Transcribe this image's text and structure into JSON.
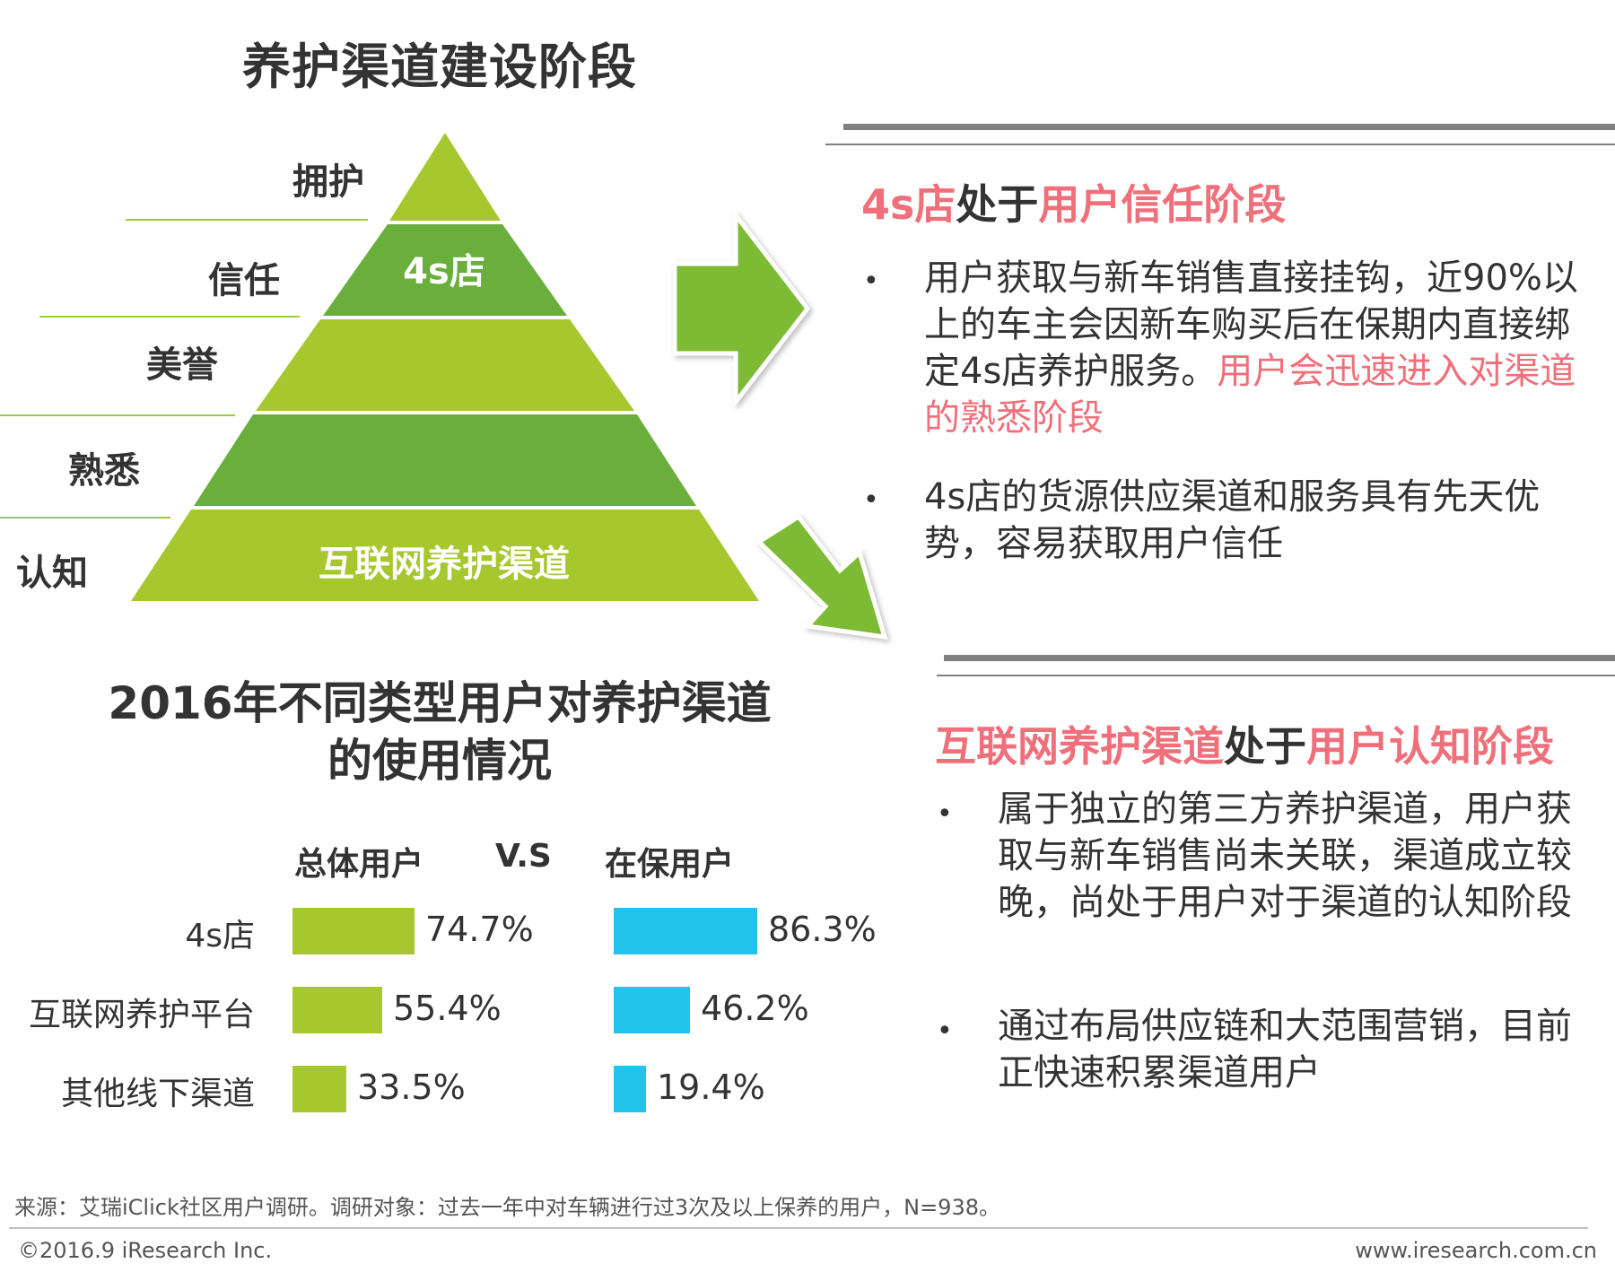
{
  "pyramid": {
    "title": "养护渠道建设阶段",
    "stages": [
      "拥护",
      "信任",
      "美誉",
      "熟悉",
      "认知"
    ],
    "tier_labels": {
      "trust": "4s店",
      "awareness": "互联网养护渠道"
    },
    "colors": {
      "light_green": "#a6c82e",
      "dark_green": "#6aae3c",
      "line_green": "#9ccb3b"
    }
  },
  "section_4s": {
    "heading": {
      "part1": "4s店",
      "part2": "处于",
      "part3": "用户信任阶段"
    },
    "bullets": [
      {
        "normal": "用户获取与新车销售直接挂钩，近90%以上的车主会因新车购买后在保期内直接绑定4s店养护服务。",
        "highlight": "用户会迅速进入对渠道的熟悉阶段"
      },
      {
        "normal": "4s店的货源供应渠道和服务具有先天优势，容易获取用户信任",
        "highlight": ""
      }
    ]
  },
  "section_internet": {
    "heading": {
      "part1": "互联网养护渠道",
      "part2": "处于",
      "part3": "用户认知阶段"
    },
    "bullets": [
      {
        "normal": "属于独立的第三方养护渠道，用户获取与新车销售尚未关联，渠道成立较晚，尚处于用户对于渠道的认知阶段"
      },
      {
        "normal": "通过布局供应链和大范围营销，目前正快速积累渠道用户"
      }
    ]
  },
  "chart_data": {
    "type": "bar",
    "title": "2016年不同类型用户对养护渠道的使用情况",
    "categories": [
      "4s店",
      "互联网养护平台",
      "其他线下渠道"
    ],
    "series": [
      {
        "name": "总体用户",
        "values": [
          74.7,
          55.4,
          33.5
        ],
        "labels": [
          "74.7%",
          "55.4%",
          "33.5%"
        ],
        "color": "#a6c82e"
      },
      {
        "name": "在保用户",
        "values": [
          86.3,
          46.2,
          19.4
        ],
        "labels": [
          "86.3%",
          "46.2%",
          "19.4%"
        ],
        "color": "#22c3ec"
      }
    ],
    "vs_label": "V.S",
    "unit": "%"
  },
  "footer": {
    "source": "来源：艾瑞iClick社区用户调研。调研对象：过去一年中对车辆进行过3次及以上保养的用户，N=938。",
    "copyright": "©2016.9 iResearch Inc.",
    "website": "www.iresearch.com.cn"
  },
  "accent": {
    "pink": "#ef6f7a",
    "arrow_green": "#7dbb35"
  }
}
